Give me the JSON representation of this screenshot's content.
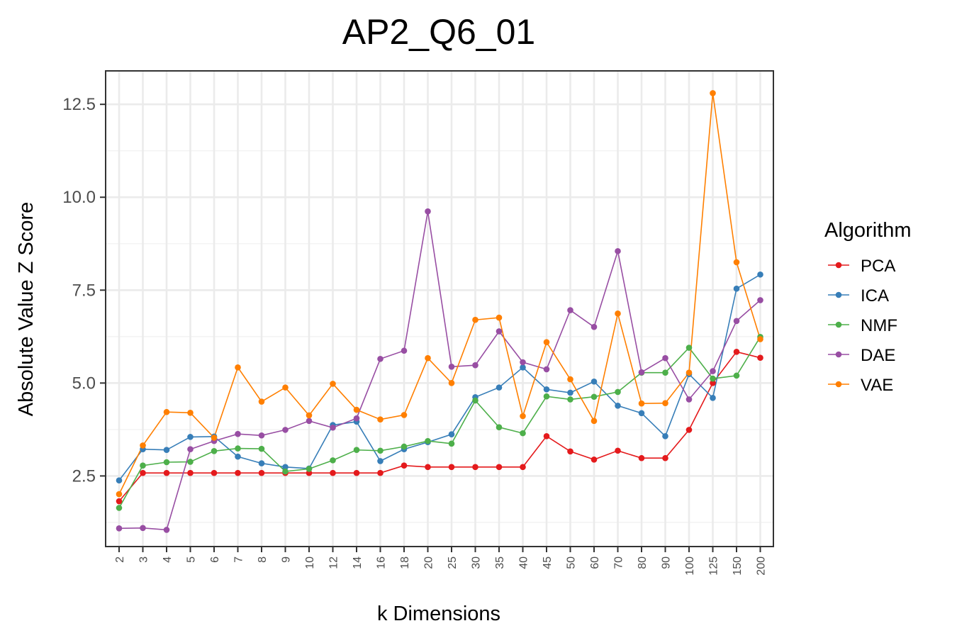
{
  "chart_data": {
    "type": "line",
    "title": "AP2_Q6_01",
    "xlabel": "k Dimensions",
    "ylabel": "Absolute Value Z Score",
    "categories": [
      "2",
      "3",
      "4",
      "5",
      "6",
      "7",
      "8",
      "9",
      "10",
      "12",
      "14",
      "16",
      "18",
      "20",
      "25",
      "30",
      "35",
      "40",
      "45",
      "50",
      "60",
      "70",
      "80",
      "90",
      "100",
      "125",
      "150",
      "200"
    ],
    "y_ticks": [
      2.5,
      5.0,
      7.5,
      10.0,
      12.5
    ],
    "y_tick_labels": [
      "2.5",
      "5.0",
      "7.5",
      "10.0",
      "12.5"
    ],
    "ylim": [
      0.6,
      13.4
    ],
    "grid": true,
    "legend": {
      "title": "Algorithm",
      "placement": "right"
    },
    "series": [
      {
        "name": "PCA",
        "color": "#E41A1C",
        "values": [
          1.82,
          2.58,
          2.58,
          2.58,
          2.58,
          2.58,
          2.58,
          2.58,
          2.58,
          2.58,
          2.58,
          2.58,
          2.78,
          2.74,
          2.74,
          2.74,
          2.74,
          2.74,
          3.57,
          3.16,
          2.94,
          3.18,
          2.98,
          2.98,
          3.74,
          5.0,
          5.84,
          5.68
        ]
      },
      {
        "name": "ICA",
        "color": "#377EB8",
        "values": [
          2.38,
          3.22,
          3.2,
          3.55,
          3.56,
          3.02,
          2.84,
          2.74,
          2.7,
          3.87,
          3.96,
          2.9,
          3.22,
          3.41,
          3.62,
          4.62,
          4.88,
          5.42,
          4.83,
          4.74,
          5.04,
          4.39,
          4.19,
          3.57,
          5.24,
          4.6,
          7.54,
          7.92
        ]
      },
      {
        "name": "NMF",
        "color": "#4DAF4A",
        "values": [
          1.64,
          2.78,
          2.87,
          2.88,
          3.17,
          3.24,
          3.23,
          2.62,
          2.69,
          2.92,
          3.2,
          3.18,
          3.29,
          3.44,
          3.37,
          4.53,
          3.81,
          3.65,
          4.64,
          4.56,
          4.63,
          4.76,
          5.28,
          5.28,
          5.95,
          5.12,
          5.2,
          6.24
        ]
      },
      {
        "name": "DAE",
        "color": "#984EA3",
        "values": [
          1.09,
          1.1,
          1.05,
          3.22,
          3.44,
          3.63,
          3.59,
          3.74,
          3.98,
          3.8,
          4.05,
          5.65,
          5.87,
          9.62,
          5.44,
          5.48,
          6.39,
          5.56,
          5.37,
          6.96,
          6.51,
          8.55,
          5.29,
          5.67,
          4.56,
          5.32,
          6.67,
          7.23
        ]
      },
      {
        "name": "VAE",
        "color": "#FF7F00",
        "values": [
          2.01,
          3.32,
          4.22,
          4.2,
          3.53,
          5.42,
          4.5,
          4.88,
          4.13,
          4.98,
          4.28,
          4.02,
          4.14,
          5.67,
          5.0,
          6.7,
          6.76,
          4.11,
          6.1,
          5.1,
          3.98,
          6.87,
          4.45,
          4.46,
          5.28,
          12.8,
          8.25,
          6.18
        ]
      }
    ]
  }
}
